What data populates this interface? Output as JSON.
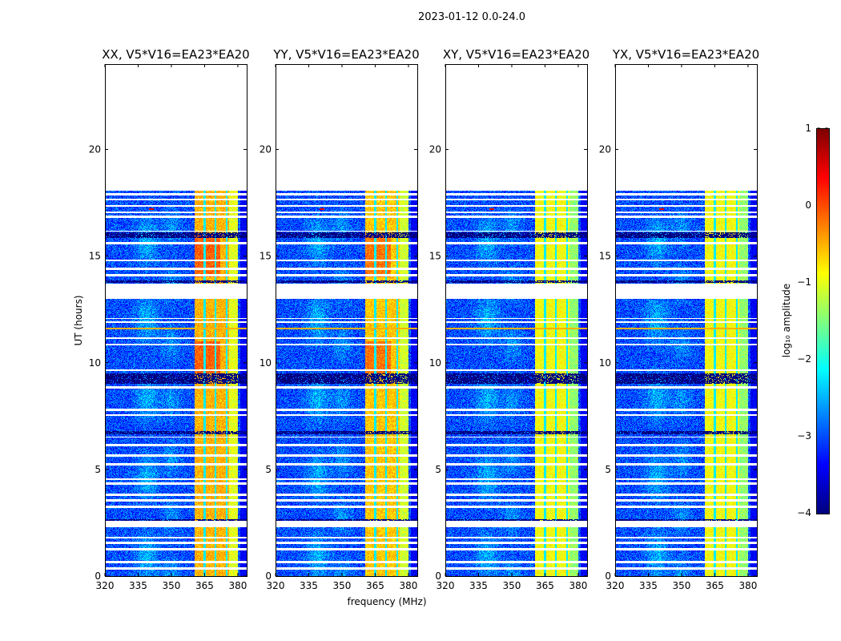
{
  "chart_data": [
    {
      "type": "heatmap",
      "suptitle": "2023-01-12 0.0-24.0",
      "panels": [
        {
          "title": "XX, V5*V16=EA23*EA20",
          "pol": "XX",
          "rfi_level": -0.5
        },
        {
          "title": "YY, V5*V16=EA23*EA20",
          "pol": "YY",
          "rfi_level": -0.6
        },
        {
          "title": "XY, V5*V16=EA23*EA20",
          "pol": "XY",
          "rfi_level": -0.9
        },
        {
          "title": "YX, V5*V16=EA23*EA20",
          "pol": "YX",
          "rfi_level": -0.9
        }
      ],
      "xlabel": "frequency (MHz)",
      "ylabel": "UT (hours)",
      "xlim": [
        320,
        384
      ],
      "ylim": [
        0,
        24
      ],
      "xticks": [
        "320",
        "335",
        "350",
        "365",
        "380"
      ],
      "yticks": [
        "0",
        "5",
        "10",
        "15",
        "20"
      ],
      "data_end_hour": 18.05,
      "background_log_amp": -3.0,
      "rfi_band_mhz": [
        360.5,
        380
      ],
      "rfi_gap_freqs_mhz": [
        365,
        370,
        375
      ],
      "flagged_gaps_hours": [
        [
          13.0,
          13.7
        ],
        [
          2.3,
          2.6
        ],
        [
          0.3,
          0.4
        ],
        [
          0.6,
          0.7
        ],
        [
          1.2,
          1.3
        ],
        [
          1.5,
          1.6
        ],
        [
          1.75,
          1.85
        ],
        [
          3.2,
          3.3
        ],
        [
          3.5,
          3.6
        ],
        [
          3.75,
          3.85
        ],
        [
          4.3,
          4.4
        ],
        [
          4.5,
          4.6
        ],
        [
          5.2,
          5.3
        ],
        [
          5.6,
          5.7
        ],
        [
          6.1,
          6.2
        ],
        [
          6.5,
          6.55
        ],
        [
          7.5,
          7.6
        ],
        [
          7.75,
          7.85
        ],
        [
          8.8,
          8.9
        ],
        [
          9.6,
          9.7
        ],
        [
          10.8,
          10.9
        ],
        [
          11.1,
          11.2
        ],
        [
          11.85,
          11.95
        ],
        [
          12.05,
          12.1
        ],
        [
          14.05,
          14.15
        ],
        [
          14.35,
          14.45
        ],
        [
          14.75,
          14.85
        ],
        [
          15.55,
          15.65
        ],
        [
          16.15,
          16.2
        ],
        [
          16.8,
          16.9
        ],
        [
          17.0,
          17.1
        ],
        [
          17.3,
          17.4
        ],
        [
          17.6,
          17.7
        ],
        [
          17.85,
          17.95
        ]
      ],
      "dark_bands_hours": [
        [
          9.0,
          9.5
        ],
        [
          6.65,
          6.8
        ],
        [
          15.85,
          16.1
        ],
        [
          13.75,
          13.85
        ],
        [
          2.6,
          2.65
        ]
      ],
      "colorbar": {
        "label": "log₁₀ amplitude",
        "range": [
          -4,
          1
        ],
        "ticks": [
          "1",
          "0",
          "−1",
          "−2",
          "−3",
          "−4"
        ],
        "colormap": "jet"
      }
    }
  ]
}
